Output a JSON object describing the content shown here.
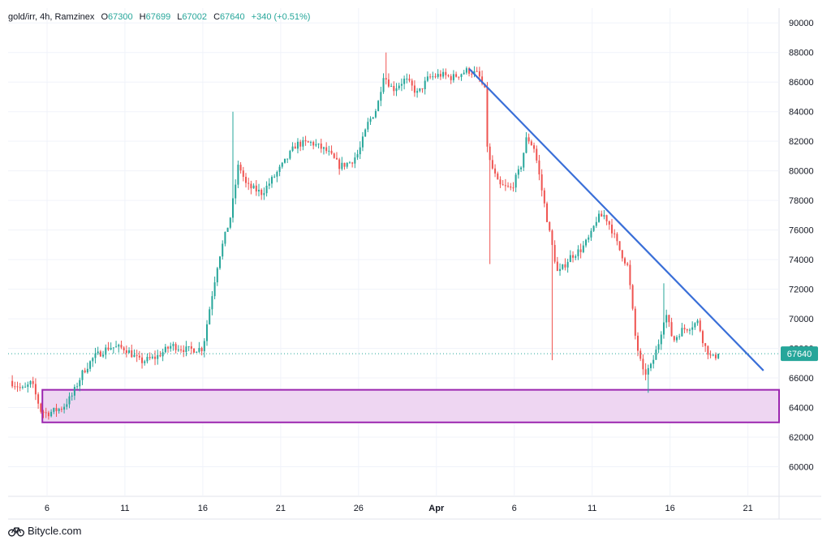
{
  "legend": {
    "symbol": "gold/irr, 4h, Ramzinex",
    "open_label": "O",
    "open": "67300",
    "high_label": "H",
    "high": "67699",
    "low_label": "L",
    "low": "67002",
    "close_label": "C",
    "close": "67640",
    "change": "+340 (+0.51%)"
  },
  "watermark": {
    "text": "Bitycle.com",
    "icon": "bicycle-icon"
  },
  "colors": {
    "up": "#26a69a",
    "down": "#ef5350",
    "trendline": "#3a6fd8",
    "zone_fill": "#eed6f2",
    "zone_border": "#9c27b0",
    "price_badge": "#26a69a",
    "grid": "#f0f3fa",
    "axis_text": "#131722"
  },
  "chart_data": {
    "type": "candlestick",
    "y_axis": {
      "min": 58000,
      "max": 91000,
      "ticks": [
        60000,
        62000,
        64000,
        66000,
        68000,
        70000,
        72000,
        74000,
        76000,
        78000,
        80000,
        82000,
        84000,
        86000,
        88000,
        90000
      ]
    },
    "x_axis": {
      "range_days": [
        3.5,
        53
      ],
      "ticks": [
        {
          "label": "6",
          "day": 6
        },
        {
          "label": "11",
          "day": 11
        },
        {
          "label": "16",
          "day": 16
        },
        {
          "label": "21",
          "day": 21
        },
        {
          "label": "26",
          "day": 26
        },
        {
          "label": "Apr",
          "day": 31
        },
        {
          "label": "6",
          "day": 36
        },
        {
          "label": "11",
          "day": 41
        },
        {
          "label": "16",
          "day": 46
        },
        {
          "label": "21",
          "day": 51
        }
      ]
    },
    "price_keypoints": [
      [
        3.6,
        65800
      ],
      [
        4.5,
        65200
      ],
      [
        5.0,
        65700
      ],
      [
        5.6,
        63800
      ],
      [
        6.0,
        63600
      ],
      [
        7.0,
        64000
      ],
      [
        7.6,
        64800
      ],
      [
        8.3,
        66400
      ],
      [
        9.0,
        67400
      ],
      [
        10.0,
        68100
      ],
      [
        11.0,
        68000
      ],
      [
        12.0,
        67100
      ],
      [
        13.0,
        67400
      ],
      [
        14.0,
        68200
      ],
      [
        15.0,
        67900
      ],
      [
        16.0,
        68000
      ],
      [
        16.4,
        70500
      ],
      [
        17.0,
        74000
      ],
      [
        17.8,
        77000
      ],
      [
        18.3,
        80500
      ],
      [
        18.8,
        79000
      ],
      [
        19.8,
        78500
      ],
      [
        20.5,
        79500
      ],
      [
        21.2,
        80500
      ],
      [
        22.0,
        81800
      ],
      [
        23.0,
        81900
      ],
      [
        24.0,
        81300
      ],
      [
        24.8,
        80300
      ],
      [
        25.5,
        80600
      ],
      [
        26.0,
        81200
      ],
      [
        26.6,
        83200
      ],
      [
        27.2,
        84300
      ],
      [
        27.6,
        86500
      ],
      [
        28.2,
        85500
      ],
      [
        29.0,
        86200
      ],
      [
        29.8,
        85200
      ],
      [
        30.5,
        86300
      ],
      [
        31.3,
        86500
      ],
      [
        32.0,
        86300
      ],
      [
        32.6,
        86600
      ],
      [
        33.0,
        86800
      ],
      [
        33.7,
        86500
      ],
      [
        34.1,
        85400
      ],
      [
        34.3,
        81000
      ],
      [
        35.0,
        79000
      ],
      [
        35.8,
        78800
      ],
      [
        36.4,
        80200
      ],
      [
        36.8,
        82300
      ],
      [
        37.3,
        81500
      ],
      [
        37.8,
        78500
      ],
      [
        38.3,
        75600
      ],
      [
        38.8,
        73000
      ],
      [
        39.6,
        74200
      ],
      [
        40.3,
        74700
      ],
      [
        40.9,
        75600
      ],
      [
        41.3,
        76800
      ],
      [
        41.8,
        77000
      ],
      [
        42.2,
        76200
      ],
      [
        42.7,
        74800
      ],
      [
        43.3,
        73500
      ],
      [
        43.8,
        68500
      ],
      [
        44.3,
        66200
      ],
      [
        44.8,
        66800
      ],
      [
        45.3,
        68500
      ],
      [
        45.7,
        70500
      ],
      [
        46.2,
        68500
      ],
      [
        46.7,
        69200
      ],
      [
        47.3,
        69500
      ],
      [
        47.8,
        69800
      ],
      [
        48.2,
        68200
      ],
      [
        48.7,
        67300
      ],
      [
        49.1,
        67640
      ]
    ],
    "trendline": {
      "start": [
        33.1,
        86900
      ],
      "end": [
        52.0,
        66500
      ]
    },
    "support_zone": {
      "x_start": 5.7,
      "x_end": 53,
      "y_low": 63000,
      "y_high": 65200
    },
    "last_price": 67640,
    "last_price_label": "67640"
  }
}
